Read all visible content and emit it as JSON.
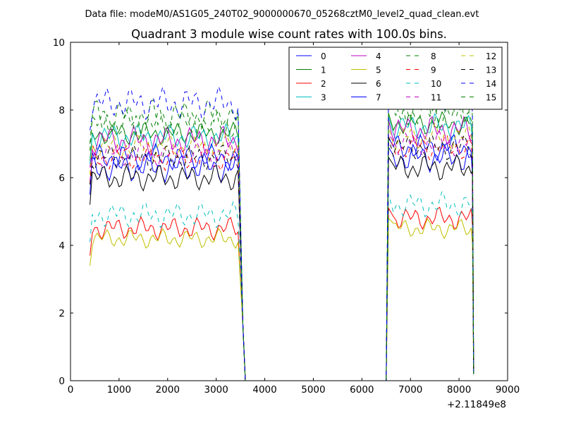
{
  "suptitle": "Data file: modeM0/AS1G05_240T02_9000000670_05268cztM0_level2_quad_clean.evt",
  "chart_data": {
    "type": "line",
    "title": "Quadrant 3 module wise count rates with 100.0s bins.",
    "xlabel": "",
    "ylabel": "",
    "x_offset_label": "+2.11849e8",
    "xlim": [
      0,
      9000
    ],
    "ylim": [
      0,
      10
    ],
    "x_ticks": [
      "0",
      "1000",
      "2000",
      "3000",
      "4000",
      "5000",
      "6000",
      "7000",
      "8000",
      "9000"
    ],
    "y_ticks": [
      "0",
      "2",
      "4",
      "6",
      "8",
      "10"
    ],
    "grid": false,
    "legend_position": "top-right",
    "legend_columns": 4,
    "x_segments": [
      [
        400,
        3450
      ],
      [
        6650,
        8250
      ]
    ],
    "gap_x": [
      3550,
      3600,
      6500,
      6550
    ],
    "x_step": 50,
    "series": [
      {
        "name": "0",
        "color": "#0000ff",
        "dash": "solid",
        "level": 6.3,
        "amp": 0.45,
        "end2": 6.0
      },
      {
        "name": "1",
        "color": "#008000",
        "dash": "solid",
        "level": 7.3,
        "amp": 0.35,
        "end2": 7.0
      },
      {
        "name": "2",
        "color": "#ff0000",
        "dash": "solid",
        "level": 4.5,
        "amp": 0.35,
        "end2": 4.6
      },
      {
        "name": "3",
        "color": "#00bfbf",
        "dash": "solid",
        "level": 7.2,
        "amp": 0.4,
        "end2": 7.0
      },
      {
        "name": "4",
        "color": "#bf00bf",
        "dash": "solid",
        "level": 7.1,
        "amp": 0.45,
        "end2": 7.1
      },
      {
        "name": "5",
        "color": "#bfbf00",
        "dash": "solid",
        "level": 4.2,
        "amp": 0.3,
        "end2": 4.0
      },
      {
        "name": "6",
        "color": "#000000",
        "dash": "solid",
        "level": 6.0,
        "amp": 0.4,
        "end2": 6.2
      },
      {
        "name": "7",
        "color": "#0000ff",
        "dash": "solid",
        "level": 6.6,
        "amp": 0.4,
        "end2": 6.3
      },
      {
        "name": "8",
        "color": "#008000",
        "dash": "dashed",
        "level": 7.8,
        "amp": 0.55,
        "end2": 7.8
      },
      {
        "name": "9",
        "color": "#ff0000",
        "dash": "dashed",
        "level": 6.6,
        "amp": 0.4,
        "end2": 6.5
      },
      {
        "name": "10",
        "color": "#00bfbf",
        "dash": "dashed",
        "level": 4.9,
        "amp": 0.4,
        "end2": 4.9
      },
      {
        "name": "11",
        "color": "#bf00bf",
        "dash": "dashed",
        "level": 6.7,
        "amp": 0.4,
        "end2": 6.8
      },
      {
        "name": "12",
        "color": "#bfbf00",
        "dash": "dashed",
        "level": 6.9,
        "amp": 0.4,
        "end2": 7.0
      },
      {
        "name": "13",
        "color": "#000000",
        "dash": "dashed",
        "level": 6.6,
        "amp": 0.4,
        "end2": 6.6
      },
      {
        "name": "14",
        "color": "#0000ff",
        "dash": "dashed",
        "level": 8.2,
        "amp": 0.5,
        "end2": 7.9
      },
      {
        "name": "15",
        "color": "#008000",
        "dash": "dashed",
        "level": 7.6,
        "amp": 0.45,
        "end2": 7.6
      }
    ]
  }
}
